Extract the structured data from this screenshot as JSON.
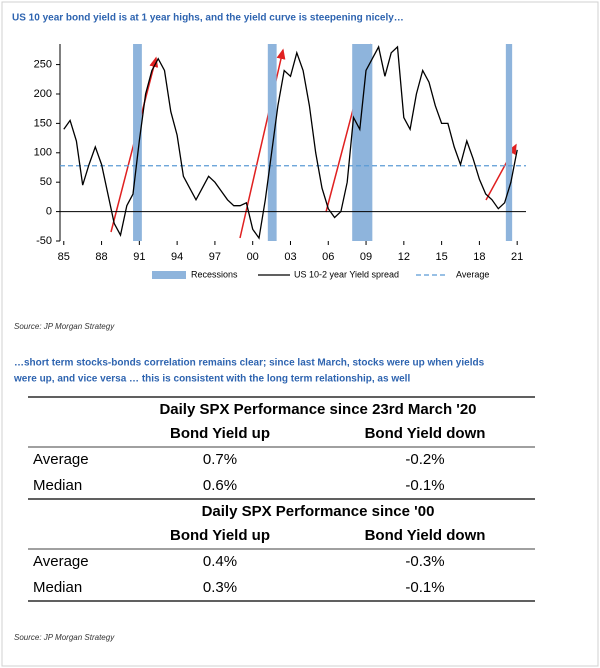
{
  "chart_data": {
    "type": "line",
    "title": "US 10 year bond yield is at 1 year highs, and the yield curve is steepening nicely…",
    "x": [
      1985,
      1985.5,
      1986,
      1986.5,
      1987,
      1987.5,
      1988,
      1988.5,
      1989,
      1989.5,
      1990,
      1990.5,
      1991,
      1991.5,
      1992,
      1992.5,
      1993,
      1993.5,
      1994,
      1994.5,
      1995,
      1995.5,
      1996,
      1996.5,
      1997,
      1997.5,
      1998,
      1998.5,
      1999,
      1999.5,
      2000,
      2000.5,
      2001,
      2001.5,
      2002,
      2002.5,
      2003,
      2003.5,
      2004,
      2004.5,
      2005,
      2005.5,
      2006,
      2006.5,
      2007,
      2007.5,
      2008,
      2008.5,
      2009,
      2009.5,
      2010,
      2010.5,
      2011,
      2011.5,
      2012,
      2012.5,
      2013,
      2013.5,
      2014,
      2014.5,
      2015,
      2015.5,
      2016,
      2016.5,
      2017,
      2017.5,
      2018,
      2018.5,
      2019,
      2019.5,
      2020,
      2020.5,
      2021
    ],
    "series": [
      {
        "name": "US 10-2 year Yield spread",
        "color": "#000000",
        "values": [
          140,
          155,
          120,
          45,
          80,
          110,
          80,
          30,
          -20,
          -40,
          10,
          30,
          120,
          200,
          240,
          260,
          240,
          170,
          130,
          60,
          40,
          20,
          40,
          60,
          50,
          35,
          20,
          10,
          10,
          15,
          -30,
          -45,
          20,
          100,
          180,
          240,
          230,
          270,
          240,
          180,
          100,
          40,
          5,
          -10,
          0,
          50,
          160,
          140,
          240,
          260,
          280,
          230,
          270,
          280,
          160,
          140,
          200,
          240,
          220,
          180,
          150,
          150,
          110,
          80,
          120,
          90,
          55,
          30,
          20,
          5,
          15,
          50,
          105
        ]
      }
    ],
    "average": {
      "name": "Average",
      "value": 78,
      "color": "#5b9bd5"
    },
    "recessions": {
      "name": "Recessions",
      "color": "#8eb4dc",
      "ranges": [
        [
          1990.5,
          1991.2
        ],
        [
          2001.2,
          2001.9
        ],
        [
          2007.9,
          2009.5
        ],
        [
          2020.1,
          2020.6
        ]
      ]
    },
    "xlim": [
      1984.7,
      2021.7
    ],
    "xticks": [
      {
        "value": 1985,
        "label": "85"
      },
      {
        "value": 1988,
        "label": "88"
      },
      {
        "value": 1991,
        "label": "91"
      },
      {
        "value": 1994,
        "label": "94"
      },
      {
        "value": 1997,
        "label": "97"
      },
      {
        "value": 2000,
        "label": "00"
      },
      {
        "value": 2003,
        "label": "03"
      },
      {
        "value": 2006,
        "label": "06"
      },
      {
        "value": 2009,
        "label": "09"
      },
      {
        "value": 2012,
        "label": "12"
      },
      {
        "value": 2015,
        "label": "15"
      },
      {
        "value": 2018,
        "label": "18"
      },
      {
        "value": 2021,
        "label": "21"
      }
    ],
    "ylim": [
      -50,
      285
    ],
    "yticks": [
      -50,
      0,
      50,
      100,
      150,
      200,
      250
    ],
    "source": "Source: JP Morgan Strategy"
  },
  "table": {
    "caption": [
      "…short term stocks-bonds correlation remains clear; since last March, stocks were up when yields",
      "were up, and vice versa … this is consistent with the long term relationship, as well"
    ],
    "sections": [
      {
        "title": "Daily SPX Performance since 23rd March '20",
        "columns": [
          "Bond Yield up",
          "Bond Yield down"
        ],
        "rows": [
          [
            "Average",
            "0.7%",
            "-0.2%"
          ],
          [
            "Median",
            "0.6%",
            "-0.1%"
          ]
        ]
      },
      {
        "title": "Daily SPX Performance since '00",
        "columns": [
          "Bond Yield up",
          "Bond Yield down"
        ],
        "rows": [
          [
            "Average",
            "0.4%",
            "-0.3%"
          ],
          [
            "Median",
            "0.3%",
            "-0.1%"
          ]
        ]
      }
    ],
    "source": "Source: JP Morgan Strategy"
  }
}
